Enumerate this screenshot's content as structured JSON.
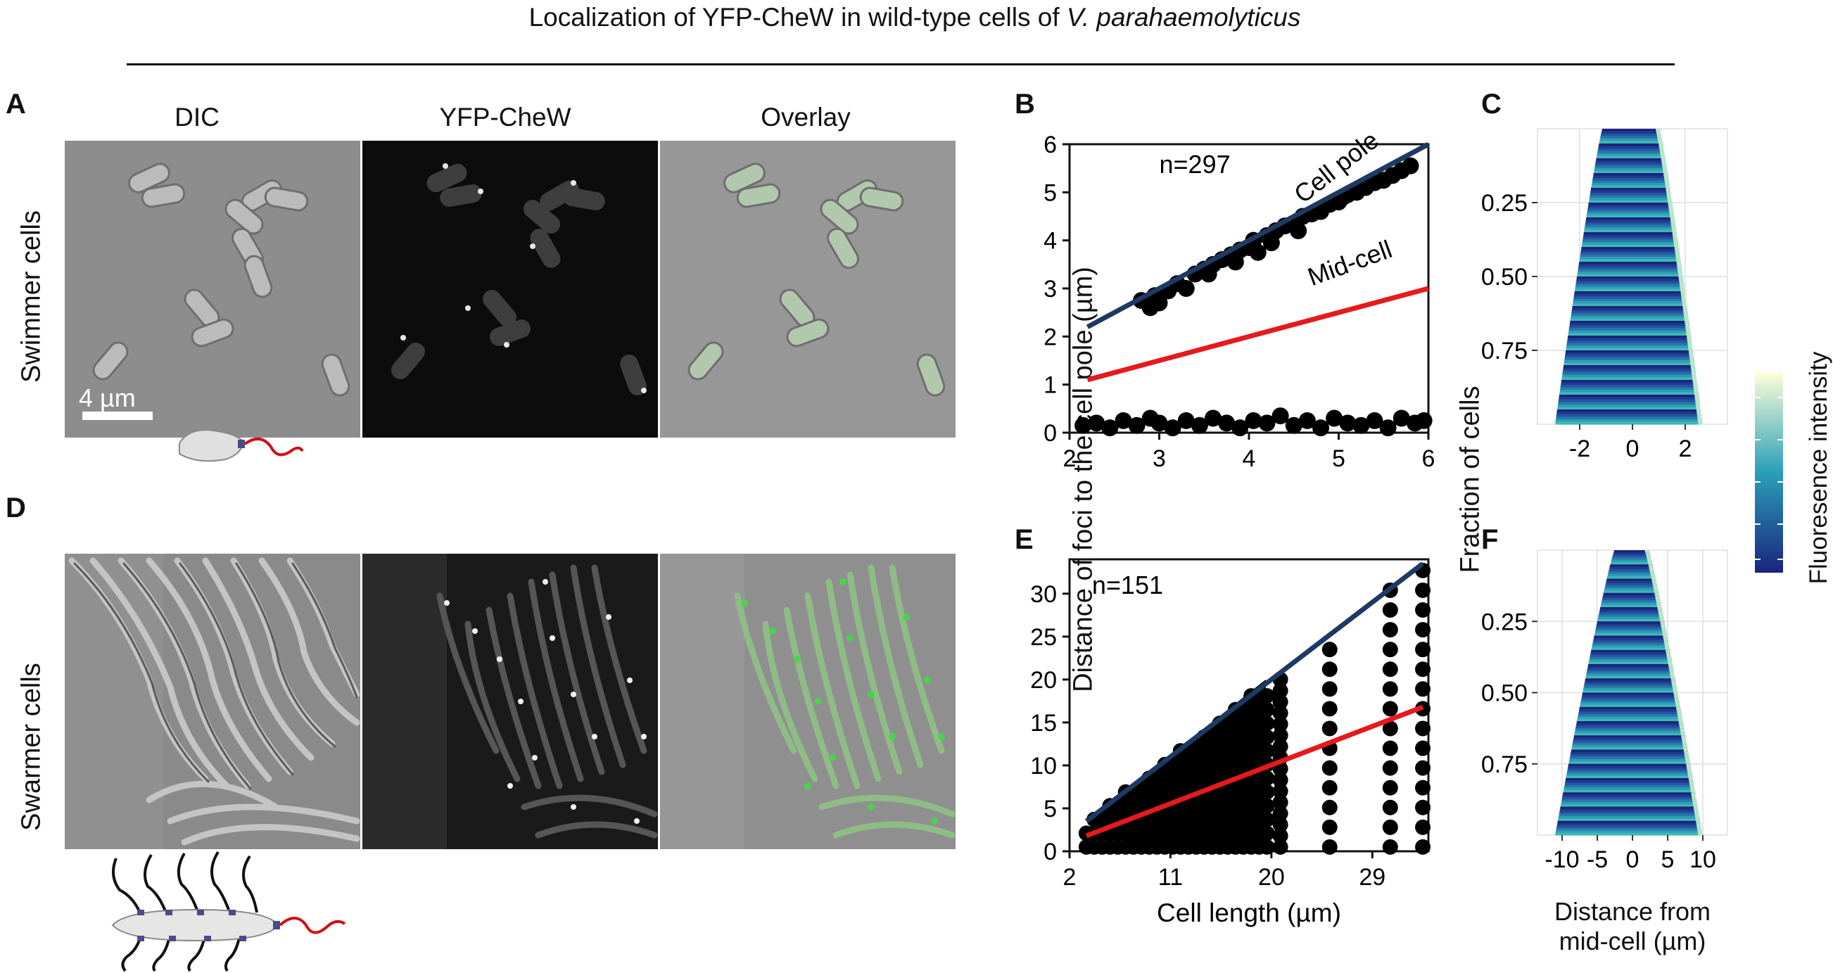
{
  "figure": {
    "title_prefix": "Localization of YFP-CheW in wild-type cells of ",
    "title_species": "V. parahaemolyticus"
  },
  "panels": {
    "a_label": "A",
    "b_label": "B",
    "c_label": "C",
    "d_label": "D",
    "e_label": "E",
    "f_label": "F"
  },
  "columns": [
    "DIC",
    "YFP-CheW",
    "Overlay"
  ],
  "rows": {
    "swimmer": "Swimmer cells",
    "swarmer": "Swarmer cells"
  },
  "scale_bar": "4 µm",
  "colors": {
    "fit_line": "#1d3a63",
    "mid_line": "#e41a1c",
    "points": "#000000",
    "heat_low": "#1a237e",
    "heat_mid": "#2a9fb8",
    "heat_high": "#ffffd9",
    "overlay_green": "#4bd34b"
  },
  "shared_ylabel": "Distance of foci to the cell pole (µm)",
  "shared_ylabel_right": "Fraction of cells",
  "colorbar_label": "Fluoresence intensity",
  "chart_data": [
    {
      "panel": "B",
      "type": "scatter",
      "annotation_n": "n=297",
      "xlim": [
        2,
        6
      ],
      "ylim": [
        0,
        6
      ],
      "xticks": [
        "2",
        "3",
        "4",
        "5",
        "6"
      ],
      "yticks": [
        "0",
        "1",
        "2",
        "3",
        "4",
        "5",
        "6"
      ],
      "lines": [
        {
          "name": "Cell pole",
          "x": [
            2.2,
            6.0
          ],
          "y": [
            2.2,
            6.0
          ]
        },
        {
          "name": "Mid-cell",
          "x": [
            2.2,
            6.0
          ],
          "y": [
            1.1,
            3.0
          ]
        }
      ],
      "points_top": {
        "x": [
          2.8,
          2.9,
          2.95,
          3.0,
          3.1,
          3.2,
          3.3,
          3.4,
          3.5,
          3.55,
          3.6,
          3.7,
          3.8,
          3.85,
          3.9,
          4.0,
          4.05,
          4.1,
          4.2,
          4.25,
          4.3,
          4.4,
          4.5,
          4.55,
          4.6,
          4.7,
          4.8,
          4.9,
          5.0,
          5.05,
          5.1,
          5.2,
          5.3,
          5.4,
          5.5,
          5.6,
          5.7,
          5.8
        ],
        "y": [
          2.75,
          2.6,
          2.85,
          2.7,
          2.95,
          3.1,
          3.0,
          3.3,
          3.4,
          3.3,
          3.5,
          3.6,
          3.7,
          3.55,
          3.8,
          3.85,
          4.0,
          3.75,
          4.1,
          3.95,
          4.2,
          4.3,
          4.35,
          4.2,
          4.5,
          4.55,
          4.6,
          4.75,
          4.8,
          4.9,
          4.95,
          5.0,
          5.1,
          5.2,
          5.25,
          5.35,
          5.45,
          5.55
        ]
      },
      "points_bottom": {
        "x": [
          2.15,
          2.3,
          2.45,
          2.6,
          2.75,
          2.9,
          3.0,
          3.15,
          3.3,
          3.45,
          3.6,
          3.75,
          3.9,
          4.05,
          4.2,
          4.35,
          4.5,
          4.65,
          4.8,
          4.95,
          5.1,
          5.25,
          5.4,
          5.55,
          5.7,
          5.85,
          5.95
        ],
        "y": [
          0.15,
          0.2,
          0.1,
          0.25,
          0.15,
          0.3,
          0.2,
          0.1,
          0.25,
          0.15,
          0.3,
          0.2,
          0.1,
          0.25,
          0.2,
          0.35,
          0.15,
          0.25,
          0.1,
          0.3,
          0.2,
          0.15,
          0.25,
          0.1,
          0.3,
          0.2,
          0.25
        ]
      }
    },
    {
      "panel": "C",
      "type": "heatmap",
      "ytick_labels": [
        "0.25",
        "0.50",
        "0.75"
      ],
      "yticks": [
        0.25,
        0.5,
        0.75
      ],
      "xticks": [
        "-2",
        "0",
        "2"
      ],
      "xtick_values": [
        -2,
        0,
        2
      ],
      "xlim": [
        -3.6,
        3.6
      ],
      "half_width_top": 1.1,
      "half_width_bottom": 2.8,
      "xlabel": ""
    },
    {
      "panel": "E",
      "type": "scatter",
      "annotation_n": "n=151",
      "xlabel": "Cell length (µm)",
      "xlim": [
        2,
        34
      ],
      "ylim": [
        0,
        34
      ],
      "xticks": [
        "2",
        "11",
        "20",
        "29"
      ],
      "xtick_values": [
        2,
        11,
        20,
        29
      ],
      "yticks": [
        "0",
        "5",
        "10",
        "15",
        "20",
        "25",
        "30"
      ],
      "lines": [
        {
          "name": "Cell pole",
          "x": [
            3.5,
            33.5
          ],
          "y": [
            3.5,
            33.5
          ]
        },
        {
          "name": "Mid-cell",
          "x": [
            3.5,
            33.5
          ],
          "y": [
            1.8,
            16.8
          ]
        }
      ],
      "columns_x": [
        20.8,
        25.2,
        30.6,
        33.5
      ],
      "columns_max_y": [
        20.5,
        24.5,
        30.5,
        33.5
      ]
    },
    {
      "panel": "F",
      "type": "heatmap",
      "ytick_labels": [
        "0.25",
        "0.50",
        "0.75"
      ],
      "yticks": [
        0.25,
        0.5,
        0.75
      ],
      "xticks": [
        "-10",
        "-5",
        "0",
        "5",
        "10"
      ],
      "xtick_values": [
        -10,
        -5,
        0,
        5,
        10
      ],
      "xlim": [
        -13.5,
        13.5
      ],
      "half_width_top": 2.5,
      "half_width_bottom": 10.5,
      "xlabel": "Distance from\nmid-cell (µm)"
    }
  ]
}
